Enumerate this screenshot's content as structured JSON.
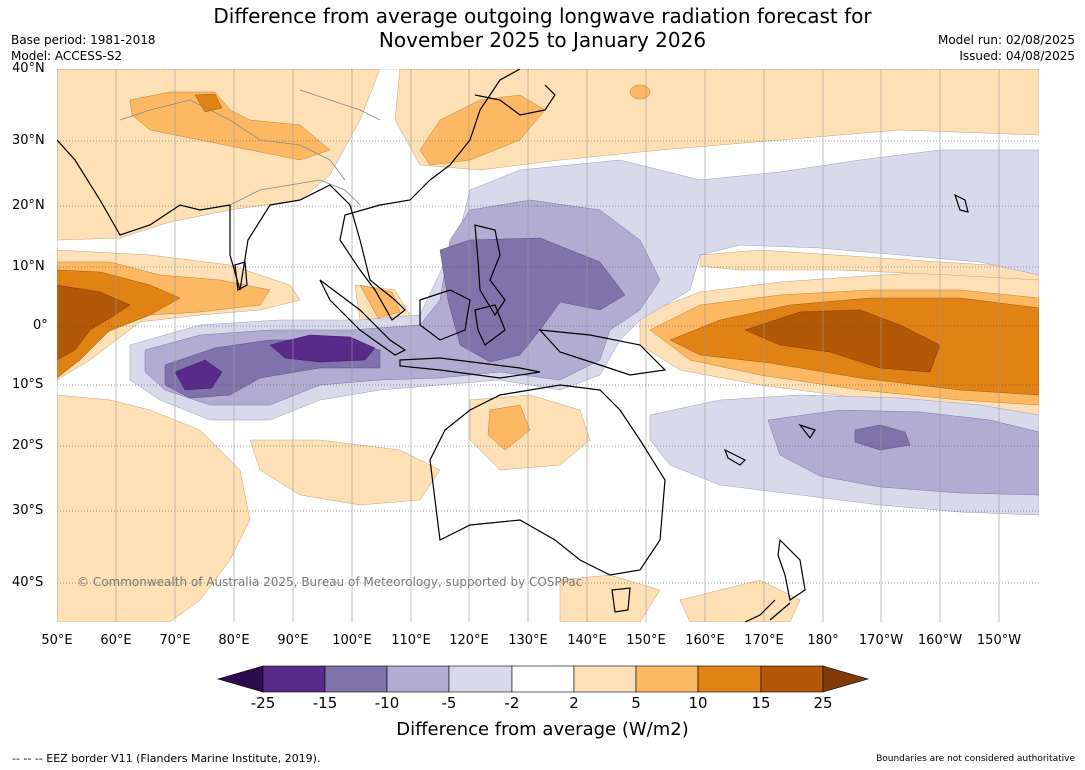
{
  "title_line1": "Difference from average outgoing longwave radiation forecast for",
  "title_line2": "November 2025 to January 2026",
  "base_period": "Base period: 1981-2018",
  "model": "Model: ACCESS-S2",
  "model_run": "Model run: 02/08/2025",
  "issued": "Issued: 04/08/2025",
  "lat_labels": [
    "40°N",
    "30°N",
    "20°N",
    "10°N",
    "0°",
    "10°S",
    "20°S",
    "30°S",
    "40°S"
  ],
  "lon_labels": [
    "50°E",
    "60°E",
    "70°E",
    "80°E",
    "90°E",
    "100°E",
    "110°E",
    "120°E",
    "130°E",
    "140°E",
    "150°E",
    "160°E",
    "170°E",
    "180°",
    "170°W",
    "160°W",
    "150°W"
  ],
  "copyright": "© Commonwealth of Australia 2025, Bureau of Meteorology, supported by COSPPac",
  "colorbar": {
    "ticks": [
      "-25",
      "-15",
      "-10",
      "-5",
      "-2",
      "2",
      "5",
      "10",
      "15",
      "25"
    ],
    "colors": {
      "lt_-25": "#2e0a4f",
      "-25_-15": "#5a2a8a",
      "-15_-10": "#8073ac",
      "-10_-5": "#b2abd2",
      "-5_-2": "#d8daeb",
      "-2_2": "#ffffff",
      "2_5": "#fee0b6",
      "5_10": "#fdb863",
      "10_15": "#e08214",
      "15_25": "#b35806",
      "gt_25": "#7f3b08"
    },
    "label": "Difference from average (W/m2)"
  },
  "footer_left": "--  --  -- EEZ border V11 (Flanders Marine Institute, 2019).",
  "footer_right": "Boundaries are not considered authoritative"
}
